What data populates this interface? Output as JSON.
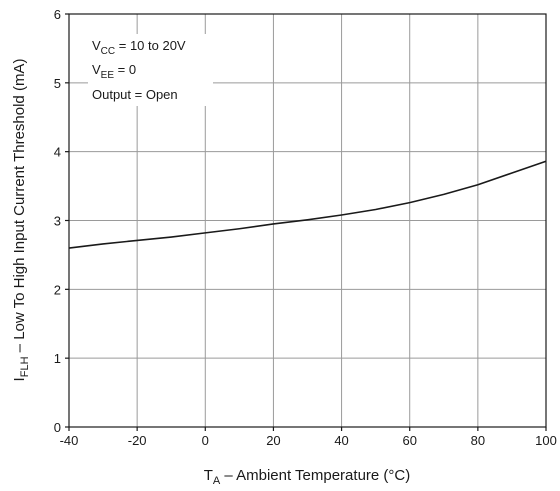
{
  "chart_data": {
    "type": "line",
    "xlabel_main": "T",
    "xlabel_sub": "A",
    "xlabel_rest": " – Ambient Temperature (°C)",
    "ylabel_main": "I",
    "ylabel_sub": "FLH",
    "ylabel_rest": " – Low To High Input Current Threshold (mA)",
    "xlim": [
      -40,
      100
    ],
    "ylim": [
      0,
      6
    ],
    "xticks": [
      -40,
      -20,
      0,
      20,
      40,
      60,
      80,
      100
    ],
    "yticks": [
      0,
      1,
      2,
      3,
      4,
      5,
      6
    ],
    "grid": true,
    "series": [
      {
        "x": [
          -40,
          -30,
          -20,
          -10,
          0,
          10,
          20,
          30,
          40,
          50,
          60,
          70,
          80,
          90,
          100
        ],
        "y": [
          2.6,
          2.66,
          2.71,
          2.76,
          2.82,
          2.88,
          2.95,
          3.01,
          3.08,
          3.16,
          3.26,
          3.38,
          3.52,
          3.69,
          3.86
        ]
      }
    ],
    "annotations": [
      {
        "main": "V",
        "sub": "CC",
        "rest": " = 10 to 20V"
      },
      {
        "main": "V",
        "sub": "EE",
        "rest": " = 0"
      },
      {
        "main": "Output = Open",
        "sub": "",
        "rest": ""
      }
    ]
  }
}
